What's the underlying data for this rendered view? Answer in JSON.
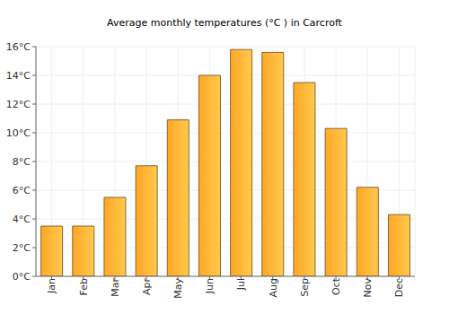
{
  "chart_data": {
    "type": "bar",
    "title": "Average monthly temperatures (°C ) in Carcroft",
    "categories": [
      "Jan",
      "Feb",
      "Mar",
      "Apr",
      "May",
      "Jun",
      "Jul",
      "Aug",
      "Sep",
      "Oct",
      "Nov",
      "Dec"
    ],
    "values": [
      3.5,
      3.5,
      5.5,
      7.7,
      10.9,
      14.0,
      15.8,
      15.6,
      13.5,
      10.3,
      6.2,
      4.3
    ],
    "color": "#ffa726",
    "ylim": [
      0,
      16
    ],
    "yticks": [
      {
        "value": 0,
        "label": "0°C"
      },
      {
        "value": 2,
        "label": "2°C"
      },
      {
        "value": 4,
        "label": "4°C"
      },
      {
        "value": 6,
        "label": "6°C"
      },
      {
        "value": 8,
        "label": "8°C"
      },
      {
        "value": 10,
        "label": "10°C"
      },
      {
        "value": 12,
        "label": "12°C"
      },
      {
        "value": 14,
        "label": "14°C"
      },
      {
        "value": 16,
        "label": "16°C"
      }
    ],
    "grid": true
  }
}
